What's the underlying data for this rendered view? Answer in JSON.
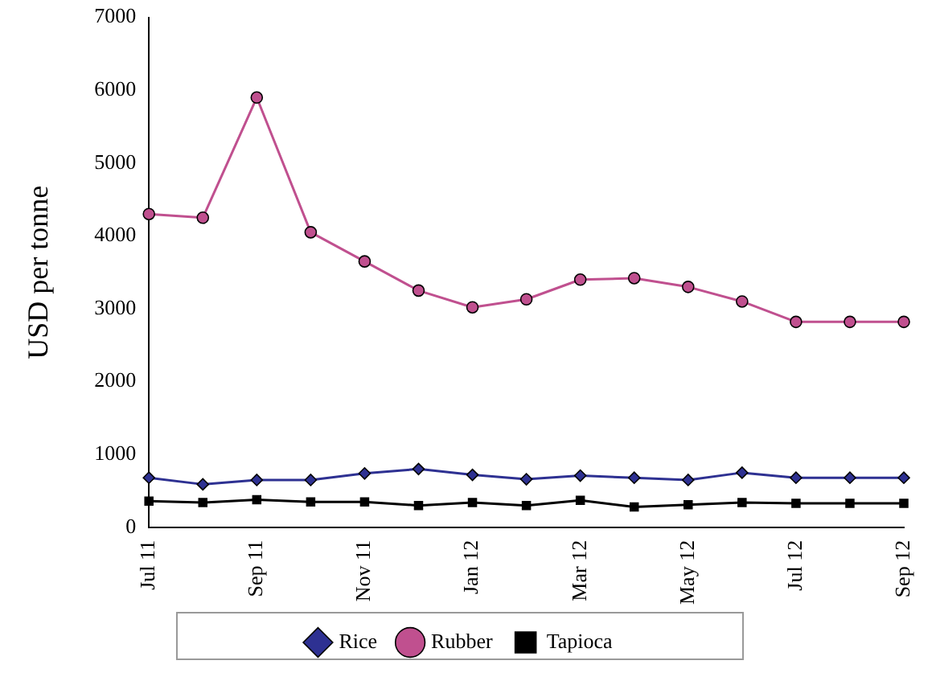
{
  "chart_data": {
    "type": "line",
    "ylabel": "USD per tonne",
    "categories": [
      "Jul 11",
      null,
      "Sep 11",
      null,
      "Nov 11",
      null,
      "Jan 12",
      null,
      "Mar 12",
      null,
      "May 12",
      null,
      "Jul 12",
      null,
      "Sep 12"
    ],
    "series": [
      {
        "name": "Rice",
        "color": "#2e3192",
        "marker": "diamond",
        "values": [
          680,
          590,
          650,
          650,
          740,
          800,
          720,
          660,
          710,
          680,
          650,
          750,
          680,
          680,
          680
        ]
      },
      {
        "name": "Rubber",
        "color": "#c0508f",
        "marker": "circle",
        "values": [
          4300,
          4250,
          5900,
          4050,
          3650,
          3250,
          3020,
          3130,
          3400,
          3420,
          3300,
          3100,
          2820,
          2820,
          2820
        ]
      },
      {
        "name": "Tapioca",
        "color": "#000000",
        "marker": "square",
        "values": [
          360,
          340,
          380,
          350,
          350,
          300,
          340,
          300,
          370,
          280,
          310,
          340,
          330,
          330,
          330
        ]
      }
    ],
    "ylim": [
      0,
      7000
    ],
    "yticks": [
      0,
      1000,
      2000,
      3000,
      4000,
      5000,
      6000,
      7000
    ],
    "grid": false,
    "legend": "bottom",
    "line_style": "solid"
  }
}
